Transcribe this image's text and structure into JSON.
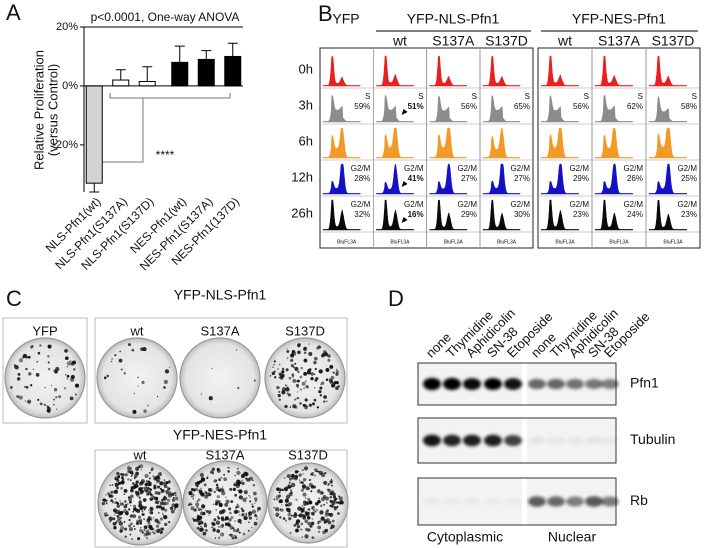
{
  "chart_data": {
    "type": "bar",
    "panel": "A",
    "title": "p<0.0001, One-way ANOVA",
    "y_label": [
      "Relative Proliferation",
      "(versus Control)"
    ],
    "categories": [
      "NLS-Pfn1(wt)",
      "NLS-Pfn1(S137A)",
      "NLS-Pfn1(S137D)",
      "NES-Pfn1(wt)",
      "NES-Pfn1(S137A)",
      "NES-Pfn1(137D)"
    ],
    "values": [
      -33,
      2,
      1.5,
      8,
      9,
      10
    ],
    "errors": [
      3,
      3.5,
      5,
      5.5,
      3,
      4.5
    ],
    "colors": [
      "#d4d4d4",
      "#ffffff",
      "#ffffff",
      "#000000",
      "#000000",
      "#000000"
    ],
    "ylim": [
      -36,
      20
    ],
    "yticks": [
      {
        "value": -20,
        "label": "-20%"
      },
      {
        "value": 0,
        "label": "0%"
      },
      {
        "value": 20,
        "label": "20%"
      }
    ],
    "annotation": "****"
  },
  "flow": {
    "panel": "B",
    "groups": [
      "YFP",
      "YFP-NLS-Pfn1",
      "YFP-NES-Pfn1"
    ],
    "columns": [
      "wt",
      "S137A",
      "S137D",
      "wt",
      "S137A",
      "S137D"
    ],
    "x_label": "BluFL3A",
    "rows": [
      {
        "label": "0h",
        "color": "#e8201f"
      },
      {
        "label": "3h",
        "color": "#8c8c8c",
        "phase": "S",
        "notes": [
          "59%",
          "51%",
          "56%",
          "65%",
          "56%",
          "62%",
          "58%"
        ]
      },
      {
        "label": "6h",
        "color": "#f39a26"
      },
      {
        "label": "12h",
        "color": "#1410c8",
        "phase": "G2/M",
        "notes": [
          "28%",
          "41%",
          "27%",
          "27%",
          "29%",
          "26%",
          "25%"
        ]
      },
      {
        "label": "26h",
        "color": "#0a0a0a",
        "phase": "G2/M",
        "notes": [
          "32%",
          "16%",
          "29%",
          "30%",
          "23%",
          "24%",
          "23%"
        ]
      }
    ]
  },
  "colony": {
    "panel": "C",
    "control": "YFP",
    "groups": [
      {
        "label": "YFP-NLS-Pfn1",
        "plates": [
          "wt",
          "S137A",
          "S137D"
        ]
      },
      {
        "label": "YFP-NES-Pfn1",
        "plates": [
          "wt",
          "S137A",
          "S137D"
        ]
      }
    ]
  },
  "western": {
    "panel": "D",
    "fractions": [
      {
        "label": "Cytoplasmic",
        "lanes": [
          "none",
          "Thymidine",
          "Aphidicolin",
          "SN-38",
          "Etoposide"
        ]
      },
      {
        "label": "Nuclear",
        "lanes": [
          "none",
          "Thymidine",
          "Aphidicolin",
          "SN-38",
          "Etoposide"
        ]
      }
    ],
    "blots": [
      "Pfn1",
      "Tubulin",
      "Rb"
    ]
  }
}
